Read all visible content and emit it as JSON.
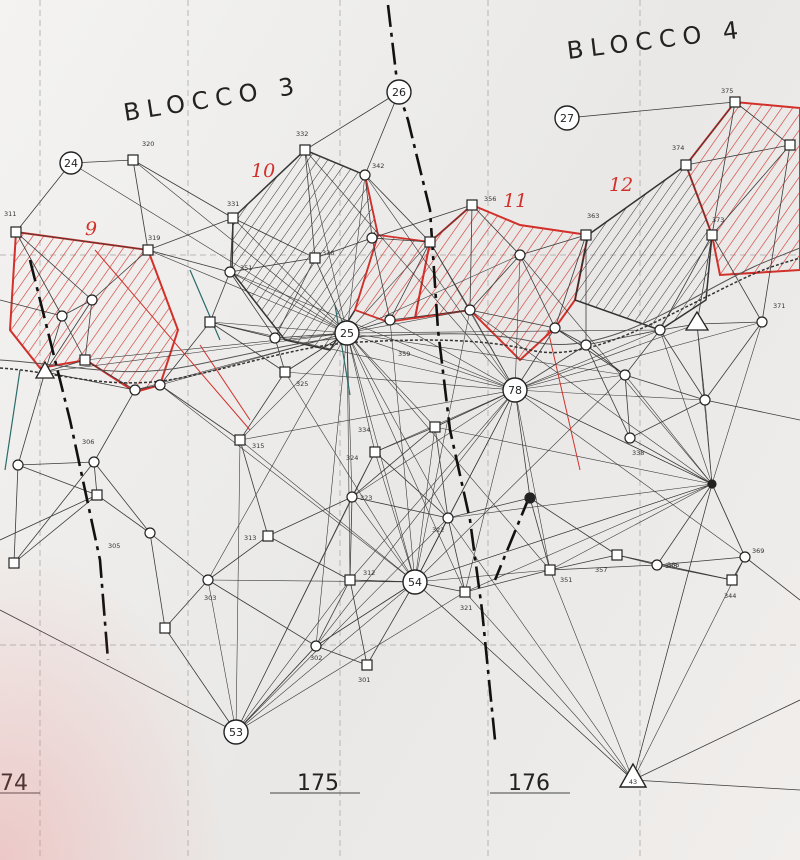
{
  "blocks": [
    {
      "label": "BLOCCO 3"
    },
    {
      "label": "BLOCCO 4"
    }
  ],
  "areas": [
    {
      "label": "9"
    },
    {
      "label": "10"
    },
    {
      "label": "11"
    },
    {
      "label": "12"
    }
  ],
  "main_stations": [
    {
      "label": "24"
    },
    {
      "label": "26"
    },
    {
      "label": "27"
    },
    {
      "label": "25"
    },
    {
      "label": "78"
    },
    {
      "label": "54"
    },
    {
      "label": "53"
    }
  ],
  "triangle_stations": [
    {
      "label": "43"
    }
  ],
  "station_labels": [
    "311",
    "320",
    "332",
    "342",
    "356",
    "375",
    "374",
    "319",
    "331",
    "351",
    "363",
    "373",
    "336",
    "359",
    "371",
    "325",
    "321",
    "365",
    "315",
    "324",
    "334",
    "338",
    "305",
    "323",
    "322",
    "357",
    "366",
    "369",
    "344",
    "313",
    "312",
    "351",
    "306",
    "303",
    "302",
    "301"
  ],
  "mileposts": [
    {
      "label": "74"
    },
    {
      "label": "175"
    },
    {
      "label": "176"
    }
  ],
  "colors": {
    "paper": "#ecebe8",
    "ink": "#2a2a2a",
    "hatch_red": "#d2302a",
    "hatch_black": "#333333"
  }
}
